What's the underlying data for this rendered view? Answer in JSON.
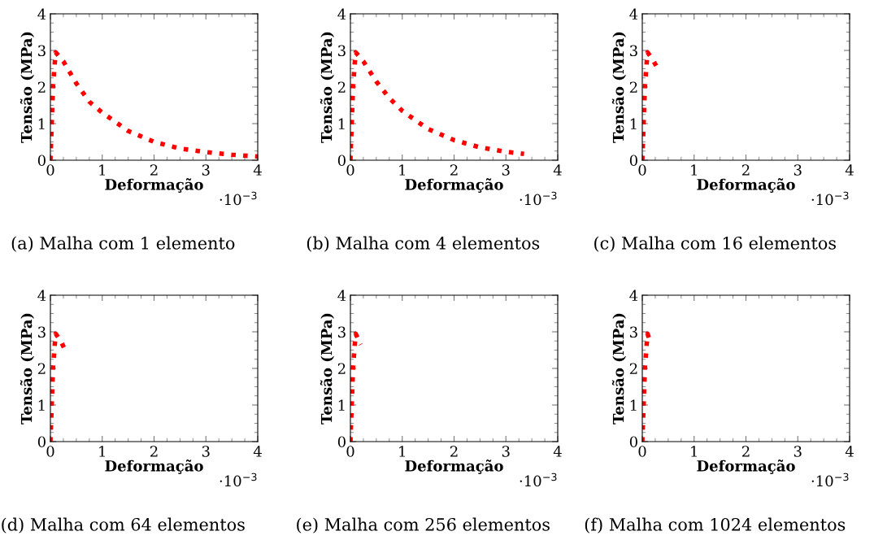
{
  "chart_data": [
    {
      "type": "line",
      "title": "(a) Malha com 1 elemento",
      "xlabel": "Deformação",
      "ylabel": "Tensão (MPa)",
      "annotations": [
        "·10$^{−3}$"
      ],
      "xlim": [
        0,
        4
      ],
      "ylim": [
        0,
        4
      ],
      "xticks": [
        0,
        1,
        2,
        3,
        4
      ],
      "yticks": [
        0,
        1,
        2,
        3,
        4
      ],
      "line_style": "dotted",
      "grid": false,
      "legend": false,
      "series": [
        {
          "color": "#ff0000",
          "x": [
            0,
            0.05,
            0.1,
            0.25,
            0.5,
            0.75,
            1,
            1.25,
            1.5,
            2,
            2.5,
            3,
            3.5,
            4
          ],
          "values": [
            0,
            2.0,
            2.95,
            2.7,
            2.1,
            1.6,
            1.3,
            1.05,
            0.8,
            0.5,
            0.32,
            0.22,
            0.15,
            0.1
          ]
        }
      ]
    },
    {
      "type": "line",
      "title": "(b) Malha com 4 elementos",
      "xlabel": "Deformação",
      "ylabel": "Tensão (MPa)",
      "annotations": [
        "·10$^{−3}$"
      ],
      "xlim": [
        0,
        4
      ],
      "ylim": [
        0,
        4
      ],
      "xticks": [
        0,
        1,
        2,
        3,
        4
      ],
      "yticks": [
        0,
        1,
        2,
        3,
        4
      ],
      "line_style": "dotted",
      "grid": false,
      "legend": false,
      "series": [
        {
          "color": "#ff0000",
          "x": [
            0,
            0.05,
            0.1,
            0.25,
            0.5,
            0.75,
            1,
            1.25,
            1.5,
            2,
            2.5,
            3,
            3.35
          ],
          "values": [
            0,
            2.0,
            2.95,
            2.7,
            2.15,
            1.7,
            1.35,
            1.1,
            0.85,
            0.55,
            0.35,
            0.23,
            0.17
          ]
        }
      ]
    },
    {
      "type": "line",
      "title": "(c) Malha com 16 elementos",
      "xlabel": "Deformação",
      "ylabel": "Tensão (MPa)",
      "annotations": [
        "·10$^{−3}$"
      ],
      "xlim": [
        0,
        4
      ],
      "ylim": [
        0,
        4
      ],
      "xticks": [
        0,
        1,
        2,
        3,
        4
      ],
      "yticks": [
        0,
        1,
        2,
        3,
        4
      ],
      "line_style": "dotted",
      "grid": false,
      "legend": false,
      "series": [
        {
          "color": "#ff0000",
          "x": [
            0,
            0.05,
            0.1,
            0.2,
            0.3
          ],
          "values": [
            0,
            2.0,
            2.95,
            2.75,
            2.5
          ]
        }
      ]
    },
    {
      "type": "line",
      "title": "(d) Malha com 64 elementos",
      "xlabel": "Deformação",
      "ylabel": "Tensão (MPa)",
      "annotations": [
        "·10$^{−3}$"
      ],
      "xlim": [
        0,
        4
      ],
      "ylim": [
        0,
        4
      ],
      "xticks": [
        0,
        1,
        2,
        3,
        4
      ],
      "yticks": [
        0,
        1,
        2,
        3,
        4
      ],
      "line_style": "dotted",
      "grid": false,
      "legend": false,
      "series": [
        {
          "color": "#ff0000",
          "x": [
            0,
            0.05,
            0.1,
            0.2,
            0.3
          ],
          "values": [
            0,
            2.0,
            2.95,
            2.75,
            2.45
          ]
        }
      ]
    },
    {
      "type": "line",
      "title": "(e) Malha com 256 elementos",
      "xlabel": "Deformação",
      "ylabel": "Tensão (MPa)",
      "annotations": [
        "·10$^{−3}$"
      ],
      "xlim": [
        0,
        4
      ],
      "ylim": [
        0,
        4
      ],
      "xticks": [
        0,
        1,
        2,
        3,
        4
      ],
      "yticks": [
        0,
        1,
        2,
        3,
        4
      ],
      "line_style": "dotted",
      "grid": false,
      "legend": false,
      "series": [
        {
          "color": "#ff0000",
          "x": [
            0,
            0.05,
            0.1,
            0.2
          ],
          "values": [
            0,
            2.0,
            2.95,
            2.65
          ]
        }
      ]
    },
    {
      "type": "line",
      "title": "(f) Malha com 1024 elementos",
      "xlabel": "Deformação",
      "ylabel": "Tensão (MPa)",
      "annotations": [
        "·10$^{−3}$"
      ],
      "xlim": [
        0,
        4
      ],
      "ylim": [
        0,
        4
      ],
      "xticks": [
        0,
        1,
        2,
        3,
        4
      ],
      "yticks": [
        0,
        1,
        2,
        3,
        4
      ],
      "line_style": "dotted",
      "grid": false,
      "legend": false,
      "series": [
        {
          "color": "#ff0000",
          "x": [
            0,
            0.05,
            0.1,
            0.15
          ],
          "values": [
            0,
            2.0,
            2.95,
            2.75
          ]
        }
      ]
    }
  ]
}
